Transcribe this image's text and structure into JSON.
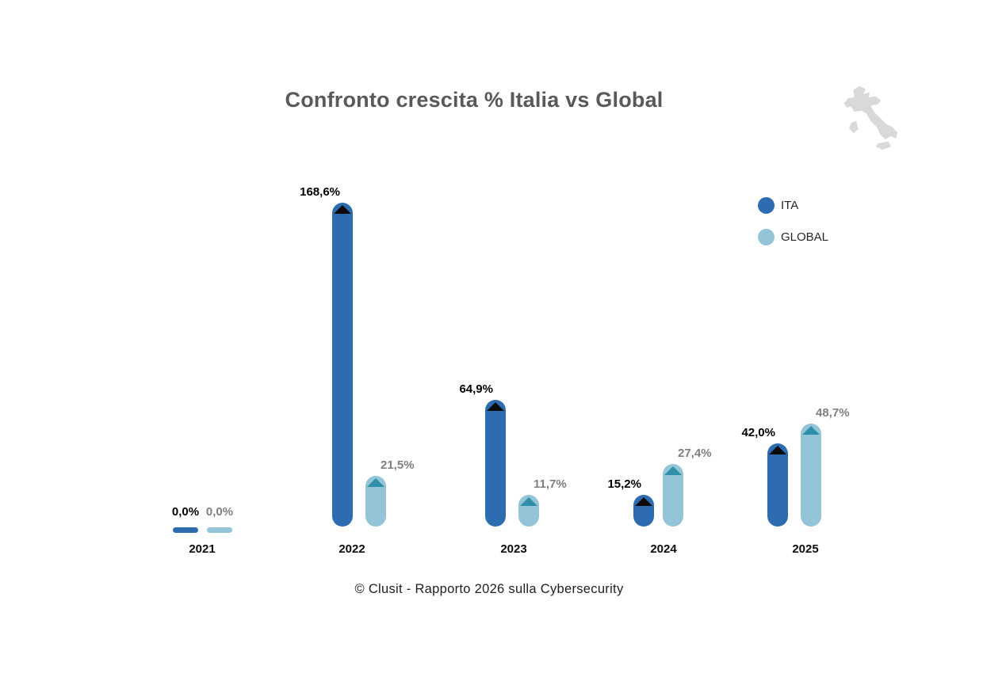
{
  "chart_data": {
    "type": "bar",
    "title": "Confronto crescita % Italia vs Global",
    "categories": [
      "2021",
      "2022",
      "2023",
      "2024",
      "2025"
    ],
    "series": [
      {
        "name": "ITA",
        "color": "#2E6CB2",
        "cap_marker_color": "#0B0B0B",
        "label_color": "#000000",
        "values": [
          0,
          168.6,
          64.9,
          15.2,
          42.0
        ],
        "value_labels": [
          "0,0%",
          "168,6%",
          "64,9%",
          "15,2%",
          "42,0%"
        ]
      },
      {
        "name": "GLOBAL",
        "color": "#93C4D8",
        "cap_marker_color": "#2F8FA6",
        "label_color": "#7F7F7F",
        "values": [
          0,
          21.5,
          11.7,
          27.4,
          48.7
        ],
        "value_labels": [
          "0,0%",
          "21,5%",
          "11,7%",
          "27,4%",
          "48,7%"
        ]
      }
    ],
    "legend": [
      "ITA",
      "GLOBAL"
    ],
    "legend_position": "top-right",
    "xlabel": "",
    "ylabel": "",
    "gridlines": false,
    "value_axis_visible": false
  },
  "icons": {
    "italy_map": "light gray silhouette of Italy"
  },
  "footer": {
    "text": "© Clusit - Rapporto 2026 sulla Cybersecurity"
  },
  "colors": {
    "title": "#595959",
    "map_gray": "#D9D9D9",
    "background": "#FFFFFF"
  }
}
